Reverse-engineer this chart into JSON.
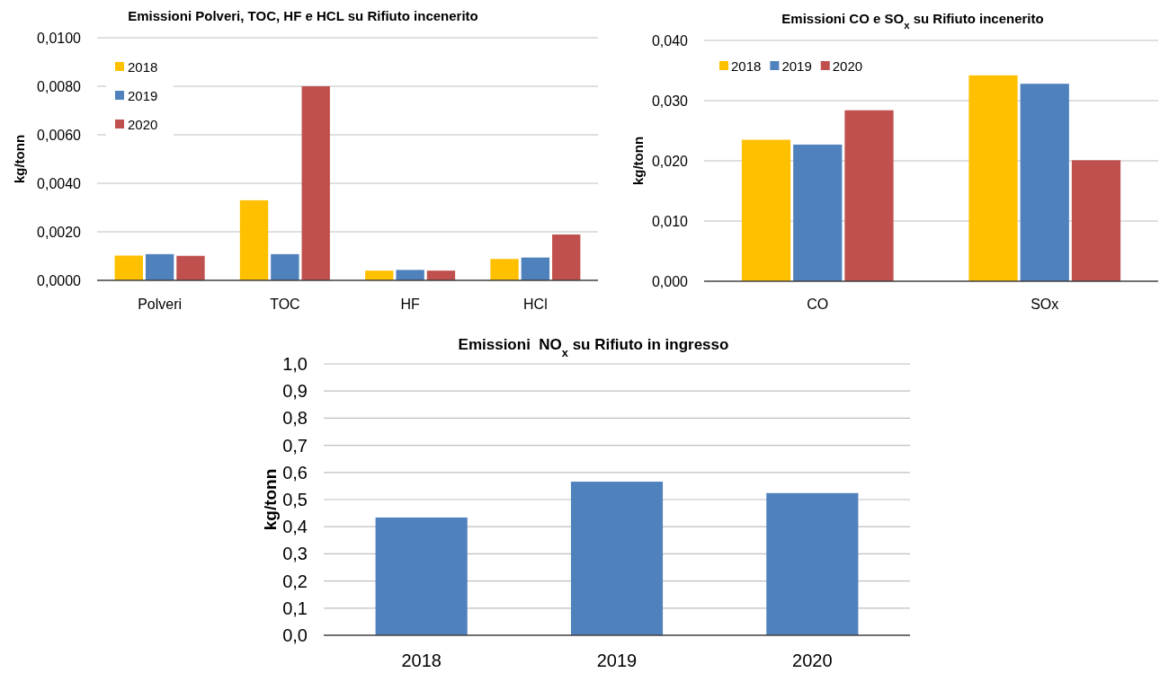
{
  "chart_data": [
    {
      "type": "bar",
      "title": "Emissioni Polveri, TOC, HF e HCL su Rifiuto incenerito",
      "ylabel": "kg/tonn",
      "categories": [
        "Polveri",
        "TOC",
        "HF",
        "HCl"
      ],
      "series": [
        {
          "name": "2018",
          "color": "#ffc000",
          "values": [
            0.00102,
            0.0033,
            0.0004,
            0.00088
          ]
        },
        {
          "name": "2019",
          "color": "#4f81bd",
          "values": [
            0.00108,
            0.00108,
            0.00043,
            0.00094
          ]
        },
        {
          "name": "2020",
          "color": "#c0504d",
          "values": [
            0.00101,
            0.008,
            0.0004,
            0.00189
          ]
        }
      ],
      "ylim": [
        0,
        0.01
      ],
      "yticks": [
        {
          "value": 0,
          "label": "0,0000"
        },
        {
          "value": 0.002,
          "label": "0,0020"
        },
        {
          "value": 0.004,
          "label": "0,0040"
        },
        {
          "value": 0.006,
          "label": "0,0060"
        },
        {
          "value": 0.008,
          "label": "0,0080"
        },
        {
          "value": 0.01,
          "label": "0,0100"
        }
      ],
      "grid": "y",
      "legend": "top left"
    },
    {
      "type": "bar",
      "title": "Emissioni CO e SO$_{x}$ su Rifiuto incenerito",
      "ylabel": "kg/tonn",
      "categories": [
        "CO",
        "SOx"
      ],
      "series": [
        {
          "name": "2018",
          "color": "#ffc000",
          "values": [
            0.0235,
            0.0342
          ]
        },
        {
          "name": "2019",
          "color": "#4f81bd",
          "values": [
            0.0227,
            0.0328
          ]
        },
        {
          "name": "2020",
          "color": "#c0504d",
          "values": [
            0.0284,
            0.0201
          ]
        }
      ],
      "ylim": [
        0,
        0.04
      ],
      "yticks": [
        {
          "value": 0,
          "label": "0,000"
        },
        {
          "value": 0.01,
          "label": "0,010"
        },
        {
          "value": 0.02,
          "label": "0,020"
        },
        {
          "value": 0.03,
          "label": "0,030"
        },
        {
          "value": 0.04,
          "label": "0,040"
        }
      ],
      "grid": "y",
      "legend": "top left"
    },
    {
      "type": "bar",
      "title": "Emissioni  NO$_{x}$ su Rifiuto in ingresso",
      "ylabel": "kg/tonn",
      "categories": [
        "2018",
        "2019",
        "2020"
      ],
      "series": [
        {
          "color": "#4f81bd",
          "values": [
            0.434,
            0.566,
            0.524
          ]
        }
      ],
      "ylim": [
        0,
        1
      ],
      "yticks": [
        {
          "value": 0,
          "label": "0,0"
        },
        {
          "value": 0.1,
          "label": "0,1"
        },
        {
          "value": 0.2,
          "label": "0,2"
        },
        {
          "value": 0.3,
          "label": "0,3"
        },
        {
          "value": 0.4,
          "label": "0,4"
        },
        {
          "value": 0.5,
          "label": "0,5"
        },
        {
          "value": 0.6,
          "label": "0,6"
        },
        {
          "value": 0.7,
          "label": "0,7"
        },
        {
          "value": 0.8,
          "label": "0,8"
        },
        {
          "value": 0.9,
          "label": "0,9"
        },
        {
          "value": 1,
          "label": "1,0"
        }
      ],
      "grid": "y"
    }
  ]
}
